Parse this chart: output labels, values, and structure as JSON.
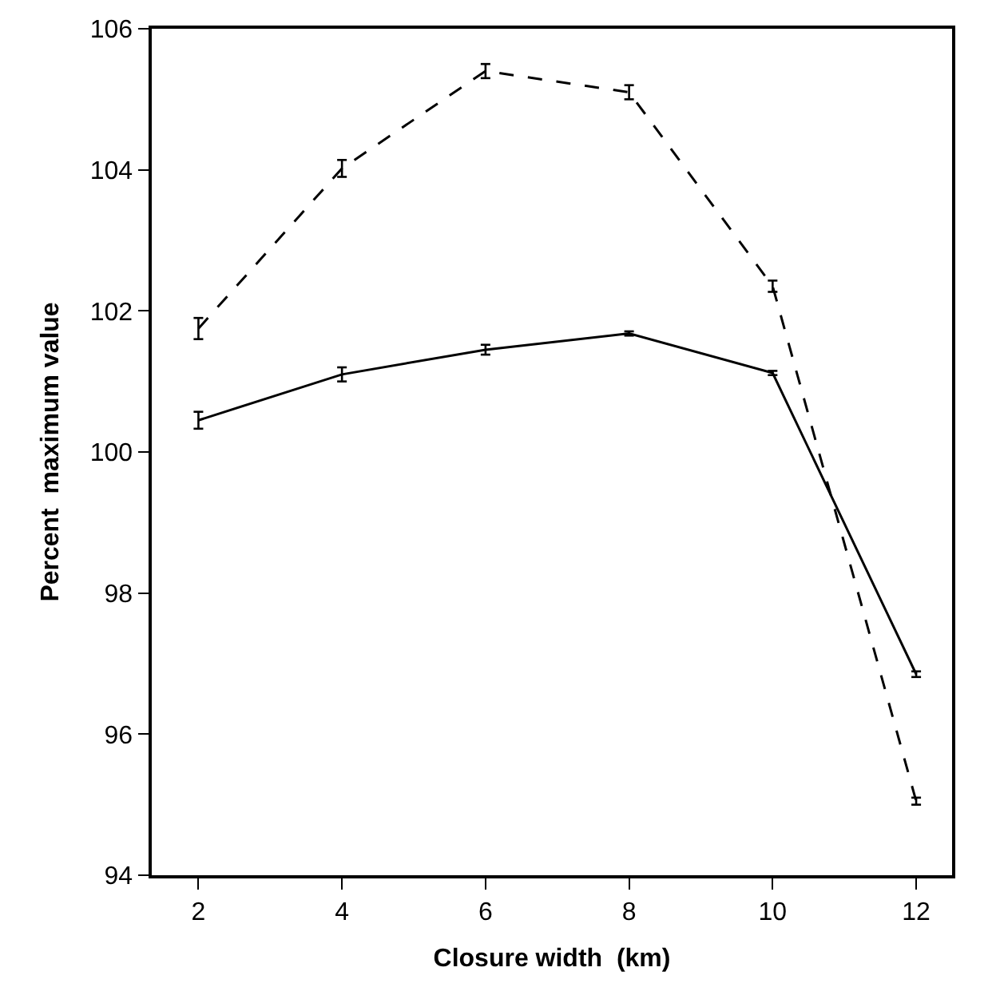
{
  "chart_data": {
    "type": "line",
    "xlabel": "Closure width  (km)",
    "ylabel": "Percent  maximum value",
    "x": [
      2,
      4,
      6,
      8,
      10,
      12
    ],
    "series": [
      {
        "color": "#000000",
        "line_style": "dashed",
        "values": [
          101.75,
          104.02,
          105.4,
          105.1,
          102.35,
          95.05
        ],
        "errors": [
          0.15,
          0.12,
          0.1,
          0.1,
          0.08,
          0.05
        ]
      },
      {
        "color": "#000000",
        "line_style": "solid",
        "values": [
          100.45,
          101.1,
          101.45,
          101.68,
          101.12,
          96.85
        ],
        "errors": [
          0.12,
          0.1,
          0.07,
          0.03,
          0.03,
          0.04
        ]
      }
    ],
    "xlim": [
      1.35,
      12.5
    ],
    "xticks": [
      2,
      4,
      6,
      8,
      10,
      12
    ],
    "ylim": [
      94,
      106
    ],
    "yticks": [
      94,
      96,
      98,
      100,
      102,
      104,
      106
    ],
    "marker": "none"
  }
}
